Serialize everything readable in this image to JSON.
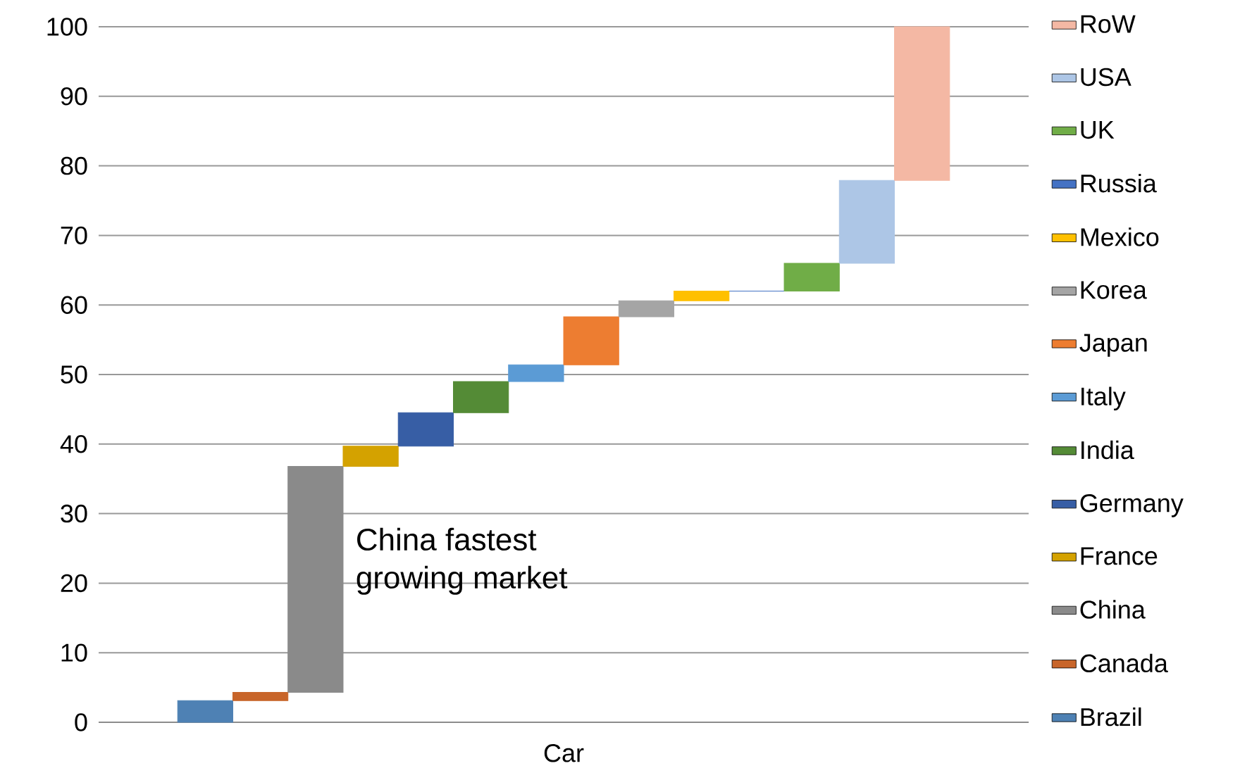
{
  "chart_data": {
    "type": "bar",
    "categories": [
      "Car"
    ],
    "series": [
      {
        "name": "Brazil",
        "color": "#4e81b4",
        "values": [
          3.1
        ],
        "base": [
          0
        ]
      },
      {
        "name": "Canada",
        "color": "#c8652a",
        "values": [
          1.2
        ],
        "base": [
          3.1
        ]
      },
      {
        "name": "China",
        "color": "#8a8a8a",
        "values": [
          32.5
        ],
        "base": [
          4.3
        ]
      },
      {
        "name": "France",
        "color": "#d4a200",
        "values": [
          2.9
        ],
        "base": [
          36.8
        ]
      },
      {
        "name": "Germany",
        "color": "#375ea5",
        "values": [
          4.8
        ],
        "base": [
          39.7
        ]
      },
      {
        "name": "India",
        "color": "#548b36",
        "values": [
          4.5
        ],
        "base": [
          44.5
        ]
      },
      {
        "name": "Italy",
        "color": "#5b9bd5",
        "values": [
          2.4
        ],
        "base": [
          49.0
        ]
      },
      {
        "name": "Japan",
        "color": "#ed7d31",
        "values": [
          6.9
        ],
        "base": [
          51.4
        ]
      },
      {
        "name": "Korea",
        "color": "#a5a5a5",
        "values": [
          2.3
        ],
        "base": [
          58.3
        ]
      },
      {
        "name": "Mexico",
        "color": "#ffc000",
        "values": [
          1.4
        ],
        "base": [
          60.6
        ]
      },
      {
        "name": "Russia",
        "color": "#4472c4",
        "values": [
          0
        ],
        "base": [
          62.0
        ]
      },
      {
        "name": "UK",
        "color": "#70ad47",
        "values": [
          4.0
        ],
        "base": [
          62.0
        ]
      },
      {
        "name": "USA",
        "color": "#adc6e6",
        "values": [
          11.9
        ],
        "base": [
          66.0
        ]
      },
      {
        "name": "RoW",
        "color": "#f4b8a4",
        "values": [
          22.1
        ],
        "base": [
          77.9
        ]
      }
    ],
    "ylim": [
      0,
      100
    ],
    "yticks": [
      0,
      10,
      20,
      30,
      40,
      50,
      60,
      70,
      80,
      90,
      100
    ],
    "grid": "y",
    "legend": "right",
    "annotations": [
      "China fastest\ngrowing market"
    ]
  }
}
